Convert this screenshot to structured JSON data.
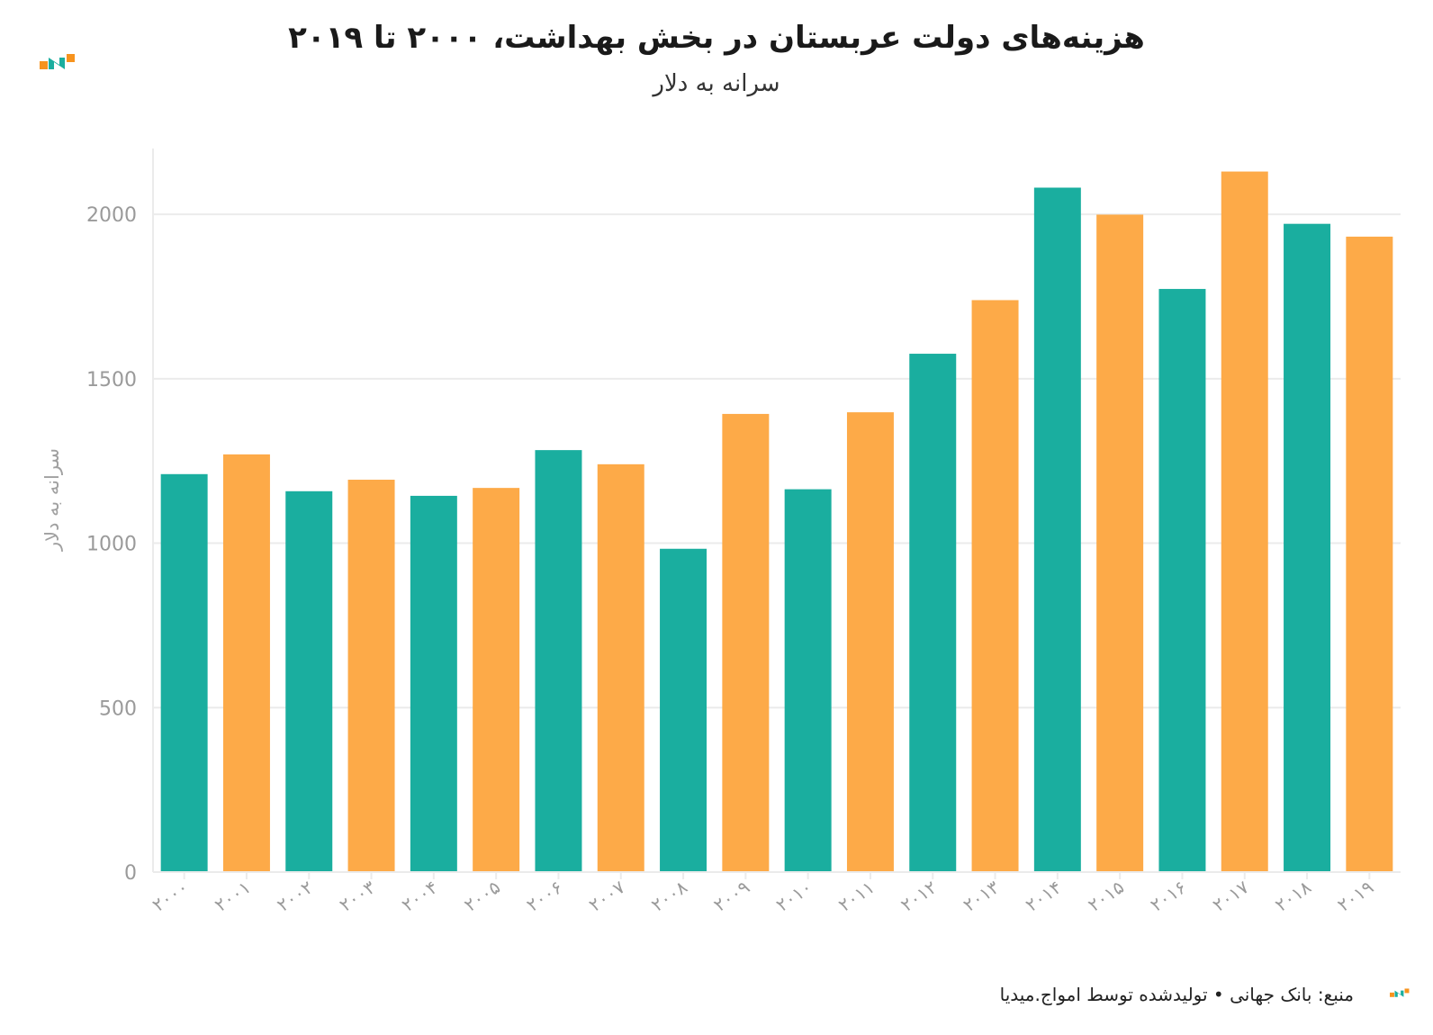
{
  "colors": {
    "teal": "#1aae9f",
    "orange": "#fdaa48",
    "grid": "#ebebeb",
    "tick_text": "#9a9a9a"
  },
  "logo": {
    "icon": "amvaj-media-logo-icon"
  },
  "footer": {
    "text": "منبع: بانک جهانی • تولیدشده توسط امواج.میدیا"
  },
  "chart_data": {
    "type": "bar",
    "title": "هزینه‌های دولت عربستان در بخش بهداشت، ۲۰۰۰ تا ۲۰۱۹",
    "subtitle": "سرانه به دلار",
    "ylabel": "سرانه به دلار",
    "xlabel": "",
    "ylim": [
      0,
      2200
    ],
    "yticks": [
      0,
      500,
      1000,
      1500,
      2000
    ],
    "grid": true,
    "bar_colors_alternate": [
      "#1aae9f",
      "#fdaa48"
    ],
    "categories": [
      "۲۰۰۰",
      "۲۰۰۱",
      "۲۰۰۲",
      "۲۰۰۳",
      "۲۰۰۴",
      "۲۰۰۵",
      "۲۰۰۶",
      "۲۰۰۷",
      "۲۰۰۸",
      "۲۰۰۹",
      "۲۰۱۰",
      "۲۰۱۱",
      "۲۰۱۲",
      "۲۰۱۳",
      "۲۰۱۴",
      "۲۰۱۵",
      "۲۰۱۶",
      "۲۰۱۷",
      "۲۰۱۸",
      "۲۰۱۹"
    ],
    "values": [
      1210,
      1270,
      1158,
      1193,
      1144,
      1168,
      1283,
      1240,
      983,
      1393,
      1164,
      1398,
      1576,
      1739,
      2081,
      1999,
      1773,
      2130,
      1971,
      1932
    ]
  }
}
